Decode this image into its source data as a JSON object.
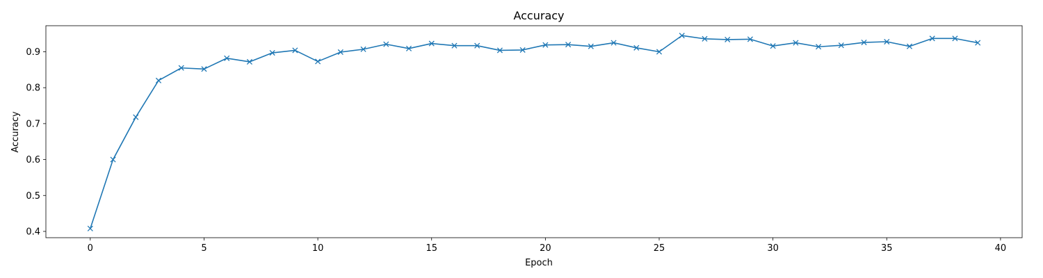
{
  "chart_data": {
    "type": "line",
    "title": "Accuracy",
    "xlabel": "Epoch",
    "ylabel": "Accuracy",
    "xlim": [
      -1.95,
      40.95
    ],
    "ylim": [
      0.3825,
      0.9725
    ],
    "xticks": [
      0,
      5,
      10,
      15,
      20,
      25,
      30,
      35,
      40
    ],
    "yticks": [
      0.4,
      0.5,
      0.6,
      0.7,
      0.8,
      0.9
    ],
    "xtick_labels": [
      "0",
      "5",
      "10",
      "15",
      "20",
      "25",
      "30",
      "35",
      "40"
    ],
    "ytick_labels": [
      "0.4",
      "0.5",
      "0.6",
      "0.7",
      "0.8",
      "0.9"
    ],
    "grid": false,
    "marker": "x",
    "series": [
      {
        "color": "#1f77b4",
        "x": [
          0,
          1,
          2,
          3,
          4,
          5,
          6,
          7,
          8,
          9,
          10,
          11,
          12,
          13,
          14,
          15,
          16,
          17,
          18,
          19,
          20,
          21,
          22,
          23,
          24,
          25,
          26,
          27,
          28,
          29,
          30,
          31,
          32,
          33,
          34,
          35,
          36,
          37,
          38,
          39
        ],
        "y": [
          0.408,
          0.6,
          0.718,
          0.82,
          0.855,
          0.852,
          0.882,
          0.872,
          0.897,
          0.904,
          0.873,
          0.899,
          0.907,
          0.921,
          0.909,
          0.923,
          0.917,
          0.917,
          0.904,
          0.905,
          0.919,
          0.92,
          0.915,
          0.925,
          0.911,
          0.9,
          0.945,
          0.936,
          0.934,
          0.935,
          0.916,
          0.925,
          0.914,
          0.918,
          0.926,
          0.928,
          0.915,
          0.937,
          0.937,
          0.925
        ]
      }
    ]
  }
}
